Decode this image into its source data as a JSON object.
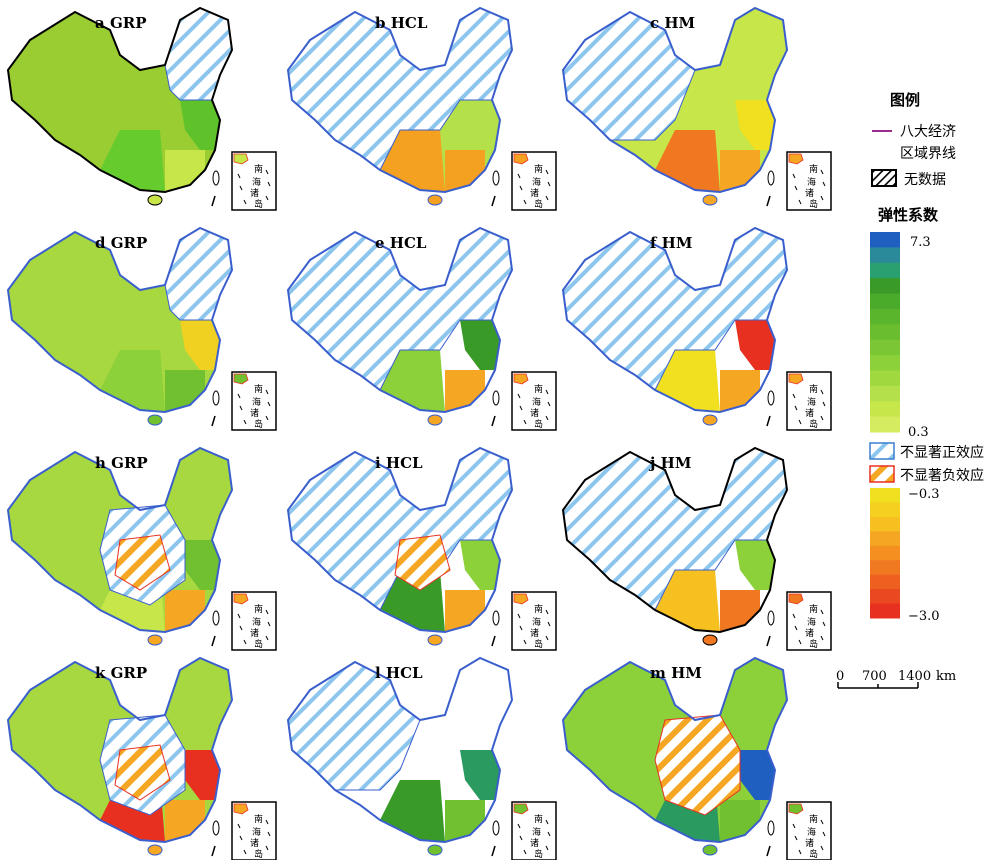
{
  "panels": [
    {
      "label": "a  GRP",
      "base": "#9acd32",
      "east": "#5fc22a",
      "south": "#66cc2e",
      "southeast": "#c6e64a",
      "hatch": "blue",
      "hatch_area": "northeast",
      "outline": "#000000"
    },
    {
      "label": "b  HCL",
      "base": "#b4e04a",
      "east": "#b4e04a",
      "south": "#f4a020",
      "southeast": "#f4a020",
      "hatch": "blue",
      "hatch_area": "most",
      "outline": "#3a5fcd"
    },
    {
      "label": "c  HM",
      "base": "#c6e64a",
      "east": "#f0e020",
      "south": "#f07820",
      "southeast": "#f5a623",
      "hatch": "blue",
      "hatch_area": "west",
      "outline": "#3a5fcd"
    },
    {
      "label": "d  GRP",
      "base": "#a8d840",
      "east": "#f0d020",
      "south": "#8cd03a",
      "southeast": "#70c030",
      "hatch": "blue",
      "hatch_area": "northeast",
      "outline": "#3a5fcd"
    },
    {
      "label": "e  HCL",
      "base": "#ffffff",
      "east": "#3a9a28",
      "south": "#8cd03a",
      "southeast": "#f5a623",
      "hatch": "blue",
      "hatch_area": "most",
      "outline": "#3a5fcd"
    },
    {
      "label": "f  HM",
      "base": "#ffffff",
      "east": "#e83020",
      "south": "#f0e020",
      "southeast": "#f5a623",
      "hatch": "blue",
      "hatch_area": "most",
      "outline": "#3a5fcd"
    },
    {
      "label": "h  GRP",
      "base": "#a8d840",
      "east": "#70c030",
      "south": "#c6e64a",
      "southeast": "#f5a623",
      "hatch": "mixed",
      "hatch_area": "center",
      "outline": "#3a5fcd"
    },
    {
      "label": "i  HCL",
      "base": "#ffffff",
      "east": "#8cd03a",
      "south": "#3a9a28",
      "southeast": "#f5a623",
      "hatch": "mixed",
      "hatch_area": "most",
      "outline": "#3a5fcd"
    },
    {
      "label": "j  HM",
      "base": "#ffffff",
      "east": "#8cd03a",
      "south": "#f5c020",
      "southeast": "#f07820",
      "hatch": "blue",
      "hatch_area": "most",
      "outline": "#000000"
    },
    {
      "label": "k  GRP",
      "base": "#a8d840",
      "east": "#e83020",
      "south": "#e83020",
      "southeast": "#f5a623",
      "hatch": "mixed",
      "hatch_area": "center",
      "outline": "#3a5fcd"
    },
    {
      "label": "l  HCL",
      "base": "#ffffff",
      "east": "#2a9a60",
      "south": "#3a9a28",
      "southeast": "#70c030",
      "hatch": "blue",
      "hatch_area": "west",
      "outline": "#3a5fcd"
    },
    {
      "label": "m  HM",
      "base": "#8cd03a",
      "east": "#1f5fbf",
      "south": "#2a9a60",
      "southeast": "#70c030",
      "hatch": "orange",
      "hatch_area": "center",
      "outline": "#3a5fcd"
    }
  ],
  "inset": {
    "chars": [
      "南",
      "海",
      "诸",
      "岛"
    ]
  },
  "legend": {
    "title": "图例",
    "boundary_line": "八大经济",
    "boundary_line2": "区域界线",
    "boundary_color": "#9b2a8f",
    "no_data": "无数据",
    "coef_title": "弹性系数",
    "ticks": [
      "7.3",
      "0.3",
      "−0.3",
      "−3.0"
    ],
    "insig_pos": "不显著正效应",
    "insig_neg": "不显著负效应",
    "colorbar": [
      "#1f5fbf",
      "#2a8a9a",
      "#2aa070",
      "#3a9a28",
      "#4aaa2a",
      "#5ab42c",
      "#6abd2e",
      "#7ac634",
      "#8cd03a",
      "#a0d840",
      "#b4e04a",
      "#c6e64a",
      "#d6ec60"
    ],
    "colorbar_neg": [
      "#f0e020",
      "#f5d020",
      "#f5c020",
      "#f5a623",
      "#f59020",
      "#f07820",
      "#ee6020",
      "#ea4820",
      "#e83020"
    ]
  },
  "scale": {
    "labels": [
      "0",
      "700",
      "1400"
    ],
    "unit": "km"
  }
}
